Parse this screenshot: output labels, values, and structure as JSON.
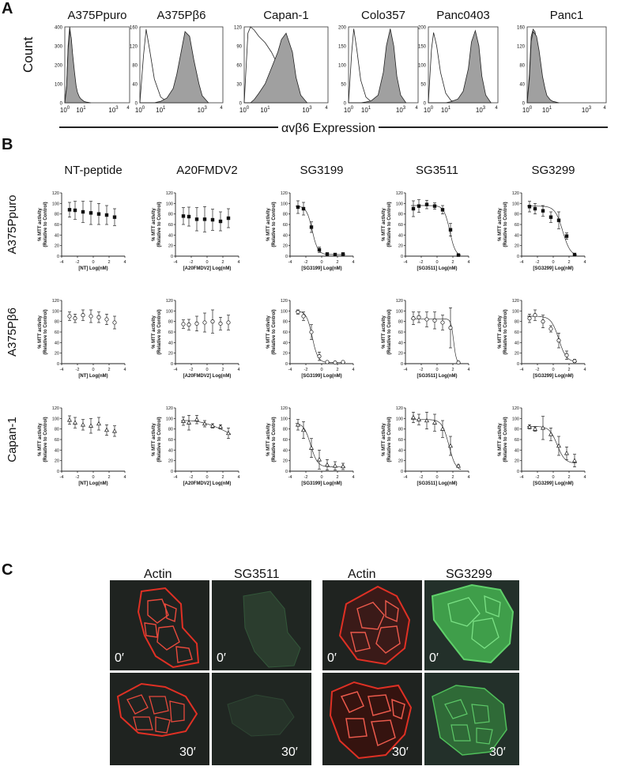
{
  "panel_labels": {
    "a": "A",
    "b": "B",
    "c": "C"
  },
  "panel_a": {
    "ylabel": "Count",
    "xlabel": "αvβ6 Expression",
    "tick_labels": [
      "10",
      "0",
      "10",
      "1",
      "10",
      "3",
      "4"
    ],
    "cell_lines": [
      "A375Ppuro",
      "A375Pβ6",
      "Capan-1",
      "Colo357",
      "Panc0403",
      "Panc1"
    ],
    "y_tick_labels": [
      [
        "400",
        "300",
        "200",
        "100",
        "0"
      ],
      [
        "160",
        "120",
        "80",
        "40",
        "0"
      ],
      [
        "120",
        "90",
        "60",
        "30",
        "0"
      ],
      [
        "200",
        "150",
        "100",
        "50",
        "0"
      ],
      [
        "200",
        "150",
        "100",
        "50",
        "0"
      ],
      [
        "160",
        "120",
        "80",
        "40",
        "0"
      ]
    ]
  },
  "panel_b": {
    "col_titles": [
      "NT-peptide",
      "A20FMDV2",
      "SG3199",
      "SG3511",
      "SG3299"
    ],
    "row_titles": [
      "A375Ppuro",
      "A375Pβ6",
      "Capan-1"
    ],
    "ylabel_line1": "% MTT activity",
    "ylabel_line2": "(Relative to Control)",
    "xlabels": [
      "[NT] Log(nM)",
      "[A20FMDV2] Log(nM)",
      "[SG3199] Log(nM)",
      "[SG3511] Log(nM)",
      "[SG3299] Log(nM)"
    ],
    "x_ticks": [
      "-4",
      "-2",
      "0",
      "2",
      "4"
    ],
    "y_ticks": [
      "0",
      "20",
      "40",
      "60",
      "80",
      "100",
      "120"
    ]
  },
  "panel_c": {
    "col_headers": [
      "Actin",
      "SG3511",
      "Actin",
      "SG3299"
    ],
    "time_labels": [
      "0′",
      "0′",
      "0′",
      "0′",
      "30′",
      "30′",
      "30′",
      "30′"
    ]
  },
  "colors": {
    "histogram_fill": "#a0a0a0",
    "actin_red": "#e03024",
    "green_strong": "#4fbf5a",
    "green_faint": "#2c5a34",
    "micrograph_bg": "#262b28"
  },
  "chart_data": [
    {
      "type": "area",
      "title": "A375Ppuro",
      "xscale": "log",
      "xlim": [
        1,
        10000
      ],
      "ylim": [
        0,
        400
      ],
      "x": [
        1,
        1.3,
        1.6,
        2,
        2.5,
        3,
        4,
        5,
        6,
        8,
        10,
        15,
        20,
        40
      ],
      "series": [
        {
          "values": [
            0,
            90,
            300,
            400,
            330,
            250,
            140,
            80,
            45,
            20,
            10,
            4,
            2,
            0
          ]
        },
        {
          "values": [
            0,
            80,
            280,
            380,
            340,
            260,
            160,
            90,
            55,
            30,
            20,
            8,
            4,
            0
          ]
        }
      ]
    },
    {
      "type": "area",
      "title": "A375Pβ6",
      "xscale": "log",
      "xlim": [
        1,
        10000
      ],
      "ylim": [
        0,
        160
      ],
      "x": [
        1,
        1.5,
        2,
        3,
        5,
        10,
        20,
        40,
        60,
        100,
        150,
        250,
        400,
        700,
        1000,
        2000
      ],
      "series": [
        {
          "values": [
            0,
            100,
            155,
            110,
            50,
            12,
            3,
            0,
            0,
            0,
            0,
            0,
            0,
            0,
            0,
            0
          ]
        },
        {
          "values": [
            0,
            0,
            0,
            0,
            0,
            3,
            10,
            30,
            60,
            110,
            150,
            140,
            90,
            40,
            15,
            0
          ]
        }
      ]
    },
    {
      "type": "area",
      "title": "Capan-1",
      "xscale": "log",
      "xlim": [
        1,
        10000
      ],
      "ylim": [
        0,
        120
      ],
      "x": [
        1,
        1.5,
        2,
        3,
        5,
        10,
        20,
        40,
        60,
        100,
        200,
        300,
        500,
        1000
      ],
      "series": [
        {
          "values": [
            0,
            110,
            120,
            115,
            105,
            95,
            80,
            60,
            35,
            15,
            5,
            0,
            0,
            0
          ]
        },
        {
          "values": [
            0,
            0,
            0,
            5,
            15,
            30,
            55,
            80,
            100,
            110,
            80,
            40,
            12,
            0
          ]
        }
      ]
    },
    {
      "type": "area",
      "title": "Colo357",
      "xscale": "log",
      "xlim": [
        1,
        10000
      ],
      "ylim": [
        0,
        200
      ],
      "x": [
        1,
        1.5,
        2,
        3,
        5,
        10,
        20,
        50,
        100,
        150,
        250,
        400,
        600,
        1000,
        2000
      ],
      "series": [
        {
          "values": [
            0,
            130,
            195,
            140,
            60,
            15,
            3,
            0,
            0,
            0,
            0,
            0,
            0,
            0,
            0
          ]
        },
        {
          "values": [
            0,
            0,
            0,
            0,
            0,
            2,
            5,
            20,
            80,
            150,
            195,
            150,
            70,
            20,
            0
          ]
        }
      ]
    },
    {
      "type": "area",
      "title": "Panc0403",
      "xscale": "log",
      "xlim": [
        1,
        10000
      ],
      "ylim": [
        0,
        200
      ],
      "x": [
        1,
        1.5,
        2,
        3,
        5,
        10,
        20,
        50,
        100,
        200,
        300,
        500,
        800,
        1200,
        2000,
        4000
      ],
      "series": [
        {
          "values": [
            0,
            140,
            185,
            150,
            80,
            25,
            6,
            0,
            0,
            0,
            0,
            0,
            0,
            0,
            0,
            0
          ]
        },
        {
          "values": [
            0,
            0,
            0,
            0,
            0,
            0,
            3,
            10,
            30,
            90,
            160,
            190,
            150,
            70,
            20,
            0
          ]
        }
      ]
    },
    {
      "type": "area",
      "title": "Panc1",
      "xscale": "log",
      "xlim": [
        1,
        10000
      ],
      "ylim": [
        0,
        160
      ],
      "x": [
        1,
        1.3,
        1.6,
        2,
        2.5,
        3,
        4,
        5,
        6,
        8,
        10,
        15,
        20,
        40
      ],
      "series": [
        {
          "values": [
            0,
            60,
            140,
            155,
            150,
            130,
            90,
            60,
            35,
            15,
            8,
            3,
            1,
            0
          ]
        },
        {
          "values": [
            0,
            50,
            130,
            150,
            145,
            140,
            110,
            80,
            55,
            30,
            15,
            6,
            3,
            0
          ]
        }
      ]
    },
    {
      "type": "scatter",
      "row": "A375Ppuro",
      "title": "NT-peptide",
      "xlabel": "[NT] Log(nM)",
      "ylabel": "% MTT activity (Relative to Control)",
      "xlim": [
        -4,
        4
      ],
      "ylim": [
        0,
        120
      ],
      "marker": "square-filled",
      "fit": "none",
      "x": [
        -3,
        -2.3,
        -1.3,
        -0.3,
        0.7,
        1.7,
        2.7
      ],
      "values": [
        88,
        87,
        84,
        82,
        80,
        78,
        74
      ],
      "errors": [
        14,
        17,
        20,
        22,
        20,
        18,
        16
      ]
    },
    {
      "type": "scatter",
      "row": "A375Ppuro",
      "title": "A20FMDV2",
      "xlabel": "[A20FMDV2] Log(nM)",
      "ylabel": "% MTT activity (Relative to Control)",
      "xlim": [
        -4,
        4
      ],
      "ylim": [
        0,
        120
      ],
      "marker": "square-filled",
      "fit": "none",
      "x": [
        -3,
        -2.3,
        -1.3,
        -0.3,
        0.7,
        1.7,
        2.7
      ],
      "values": [
        76,
        75,
        70,
        70,
        69,
        66,
        72
      ],
      "errors": [
        16,
        18,
        22,
        24,
        20,
        18,
        18
      ]
    },
    {
      "type": "scatter",
      "row": "A375Ppuro",
      "title": "SG3199",
      "xlabel": "[SG3199] Log(nM)",
      "ylabel": "% MTT activity (Relative to Control)",
      "xlim": [
        -4,
        4
      ],
      "ylim": [
        0,
        120
      ],
      "marker": "square-filled",
      "fit": "sigmoid",
      "x": [
        -3,
        -2.3,
        -1.3,
        -0.3,
        0.7,
        1.7,
        2.7
      ],
      "values": [
        93,
        90,
        55,
        12,
        4,
        3,
        4
      ],
      "errors": [
        12,
        12,
        10,
        5,
        2,
        2,
        2
      ],
      "fit_params": {
        "top": 95,
        "bottom": 3,
        "ec50": -1.2,
        "hill": 1.2
      }
    },
    {
      "type": "scatter",
      "row": "A375Ppuro",
      "title": "SG3511",
      "xlabel": "[SG3511] Log(nM)",
      "ylabel": "% MTT activity (Relative to Control)",
      "xlim": [
        -4,
        4
      ],
      "ylim": [
        0,
        120
      ],
      "marker": "square-filled",
      "fit": "sigmoid",
      "x": [
        -3,
        -2.3,
        -1.3,
        -0.3,
        0.7,
        1.7,
        2.7
      ],
      "values": [
        90,
        95,
        98,
        95,
        88,
        50,
        2
      ],
      "errors": [
        15,
        12,
        8,
        6,
        8,
        12,
        2
      ],
      "fit_params": {
        "top": 96,
        "bottom": 0,
        "ec50": 1.6,
        "hill": 1.2
      }
    },
    {
      "type": "scatter",
      "row": "A375Ppuro",
      "title": "SG3299",
      "xlabel": "[SG3299] Log(nM)",
      "ylabel": "% MTT activity (Relative to Control)",
      "xlim": [
        -4,
        4
      ],
      "ylim": [
        0,
        120
      ],
      "marker": "square-filled",
      "fit": "sigmoid",
      "x": [
        -3,
        -2.3,
        -1.3,
        -0.3,
        0.7,
        1.7,
        2.7
      ],
      "values": [
        94,
        90,
        86,
        74,
        68,
        38,
        3
      ],
      "errors": [
        10,
        10,
        10,
        10,
        16,
        6,
        2
      ],
      "fit_params": {
        "top": 95,
        "bottom": 0,
        "ec50": 1.2,
        "hill": 0.9
      }
    },
    {
      "type": "scatter",
      "row": "A375Pβ6",
      "title": "NT-peptide",
      "xlabel": "[NT] Log(nM)",
      "ylabel": "% MTT activity (Relative to Control)",
      "xlim": [
        -4,
        4
      ],
      "ylim": [
        0,
        120
      ],
      "marker": "circle-open",
      "fit": "none",
      "x": [
        -3,
        -2.3,
        -1.3,
        -0.3,
        0.7,
        1.7,
        2.7
      ],
      "values": [
        90,
        86,
        92,
        90,
        88,
        84,
        78
      ],
      "errors": [
        8,
        8,
        10,
        12,
        10,
        10,
        12
      ]
    },
    {
      "type": "scatter",
      "row": "A375Pβ6",
      "title": "A20FMDV2",
      "xlabel": "[A20FMDV2] Log(nM)",
      "ylabel": "% MTT activity (Relative to Control)",
      "xlim": [
        -4,
        4
      ],
      "ylim": [
        0,
        120
      ],
      "marker": "circle-open",
      "fit": "none",
      "x": [
        -3,
        -2.3,
        -1.3,
        -0.3,
        0.7,
        1.7,
        2.7
      ],
      "values": [
        75,
        74,
        76,
        78,
        80,
        76,
        78
      ],
      "errors": [
        8,
        10,
        14,
        18,
        22,
        12,
        14
      ]
    },
    {
      "type": "scatter",
      "row": "A375Pβ6",
      "title": "SG3199",
      "xlabel": "[SG3199] Log(nM)",
      "ylabel": "% MTT activity (Relative to Control)",
      "xlim": [
        -4,
        4
      ],
      "ylim": [
        0,
        120
      ],
      "marker": "circle-open",
      "fit": "sigmoid",
      "x": [
        -3,
        -2.3,
        -1.3,
        -0.3,
        0.7,
        1.7,
        2.7
      ],
      "values": [
        98,
        90,
        60,
        14,
        3,
        2,
        3
      ],
      "errors": [
        4,
        8,
        14,
        8,
        2,
        2,
        2
      ],
      "fit_params": {
        "top": 100,
        "bottom": 2,
        "ec50": -1.2,
        "hill": 1.2
      }
    },
    {
      "type": "scatter",
      "row": "A375Pβ6",
      "title": "SG3511",
      "xlabel": "[SG3511] Log(nM)",
      "ylabel": "% MTT activity (Relative to Control)",
      "xlim": [
        -4,
        4
      ],
      "ylim": [
        0,
        120
      ],
      "marker": "circle-open",
      "fit": "sigmoid",
      "x": [
        -3,
        -2.3,
        -1.3,
        -0.3,
        0.7,
        1.7,
        2.7
      ],
      "values": [
        86,
        88,
        84,
        82,
        78,
        68,
        2
      ],
      "errors": [
        12,
        10,
        14,
        16,
        14,
        38,
        2
      ],
      "fit_params": {
        "top": 85,
        "bottom": 0,
        "ec50": 2.1,
        "hill": 2.5
      }
    },
    {
      "type": "scatter",
      "row": "A375Pβ6",
      "title": "SG3299",
      "xlabel": "[SG3299] Log(nM)",
      "ylabel": "% MTT activity (Relative to Control)",
      "xlim": [
        -4,
        4
      ],
      "ylim": [
        0,
        120
      ],
      "marker": "circle-open",
      "fit": "sigmoid",
      "x": [
        -3,
        -2.3,
        -1.3,
        -0.3,
        0.7,
        1.7,
        2.7
      ],
      "values": [
        86,
        92,
        80,
        66,
        44,
        16,
        5
      ],
      "errors": [
        8,
        10,
        12,
        6,
        14,
        8,
        3
      ],
      "fit_params": {
        "top": 90,
        "bottom": 3,
        "ec50": 0.7,
        "hill": 0.9
      }
    },
    {
      "type": "scatter",
      "row": "Capan-1",
      "title": "NT-peptide",
      "xlabel": "[NT] Log(nM)",
      "ylabel": "% MTT activity (Relative to Control)",
      "xlim": [
        -4,
        4
      ],
      "ylim": [
        0,
        120
      ],
      "marker": "triangle-open",
      "fit": "none",
      "x": [
        -3,
        -2.3,
        -1.3,
        -0.3,
        0.7,
        1.7,
        2.7
      ],
      "values": [
        97,
        92,
        88,
        86,
        90,
        78,
        76
      ],
      "errors": [
        8,
        10,
        10,
        14,
        12,
        10,
        10
      ]
    },
    {
      "type": "scatter",
      "row": "Capan-1",
      "title": "A20FMDV2",
      "xlabel": "[A20FMDV2] Log(nM)",
      "ylabel": "% MTT activity (Relative to Control)",
      "xlim": [
        -4,
        4
      ],
      "ylim": [
        0,
        120
      ],
      "marker": "triangle-open",
      "fit": "line",
      "x": [
        -3,
        -2.3,
        -1.3,
        -0.3,
        0.7,
        1.7,
        2.7
      ],
      "values": [
        95,
        92,
        98,
        90,
        86,
        84,
        72
      ],
      "errors": [
        8,
        14,
        8,
        6,
        4,
        4,
        10
      ]
    },
    {
      "type": "scatter",
      "row": "Capan-1",
      "title": "SG3199",
      "xlabel": "[SG3199] Log(nM)",
      "ylabel": "% MTT activity (Relative to Control)",
      "xlim": [
        -4,
        4
      ],
      "ylim": [
        0,
        120
      ],
      "marker": "triangle-open",
      "fit": "sigmoid",
      "x": [
        -3,
        -2.3,
        -1.3,
        -0.3,
        0.7,
        1.7,
        2.7
      ],
      "values": [
        88,
        78,
        44,
        22,
        12,
        10,
        9
      ],
      "errors": [
        10,
        16,
        18,
        18,
        10,
        8,
        6
      ],
      "fit_params": {
        "top": 92,
        "bottom": 8,
        "ec50": -1.4,
        "hill": 1.0
      }
    },
    {
      "type": "scatter",
      "row": "Capan-1",
      "title": "SG3511",
      "xlabel": "[SG3511] Log(nM)",
      "ylabel": "% MTT activity (Relative to Control)",
      "xlim": [
        -4,
        4
      ],
      "ylim": [
        0,
        120
      ],
      "marker": "triangle-open",
      "fit": "sigmoid",
      "x": [
        -3,
        -2.3,
        -1.3,
        -0.3,
        0.7,
        1.7,
        2.7
      ],
      "values": [
        102,
        98,
        96,
        92,
        80,
        48,
        10
      ],
      "errors": [
        10,
        10,
        16,
        16,
        16,
        18,
        2
      ],
      "fit_params": {
        "top": 98,
        "bottom": 0,
        "ec50": 1.5,
        "hill": 1.0
      }
    },
    {
      "type": "scatter",
      "row": "Capan-1",
      "title": "SG3299",
      "xlabel": "[SG3299] Log(nM)",
      "ylabel": "% MTT activity (Relative to Control)",
      "xlim": [
        -4,
        4
      ],
      "ylim": [
        0,
        120
      ],
      "marker": "triangle-open",
      "fit": "sigmoid",
      "x": [
        -3,
        -2.3,
        -1.3,
        -0.3,
        0.7,
        1.7,
        2.7
      ],
      "values": [
        84,
        80,
        82,
        70,
        48,
        34,
        20
      ],
      "errors": [
        4,
        4,
        22,
        12,
        18,
        12,
        12
      ],
      "fit_params": {
        "top": 85,
        "bottom": 15,
        "ec50": 0.5,
        "hill": 0.9
      }
    }
  ]
}
